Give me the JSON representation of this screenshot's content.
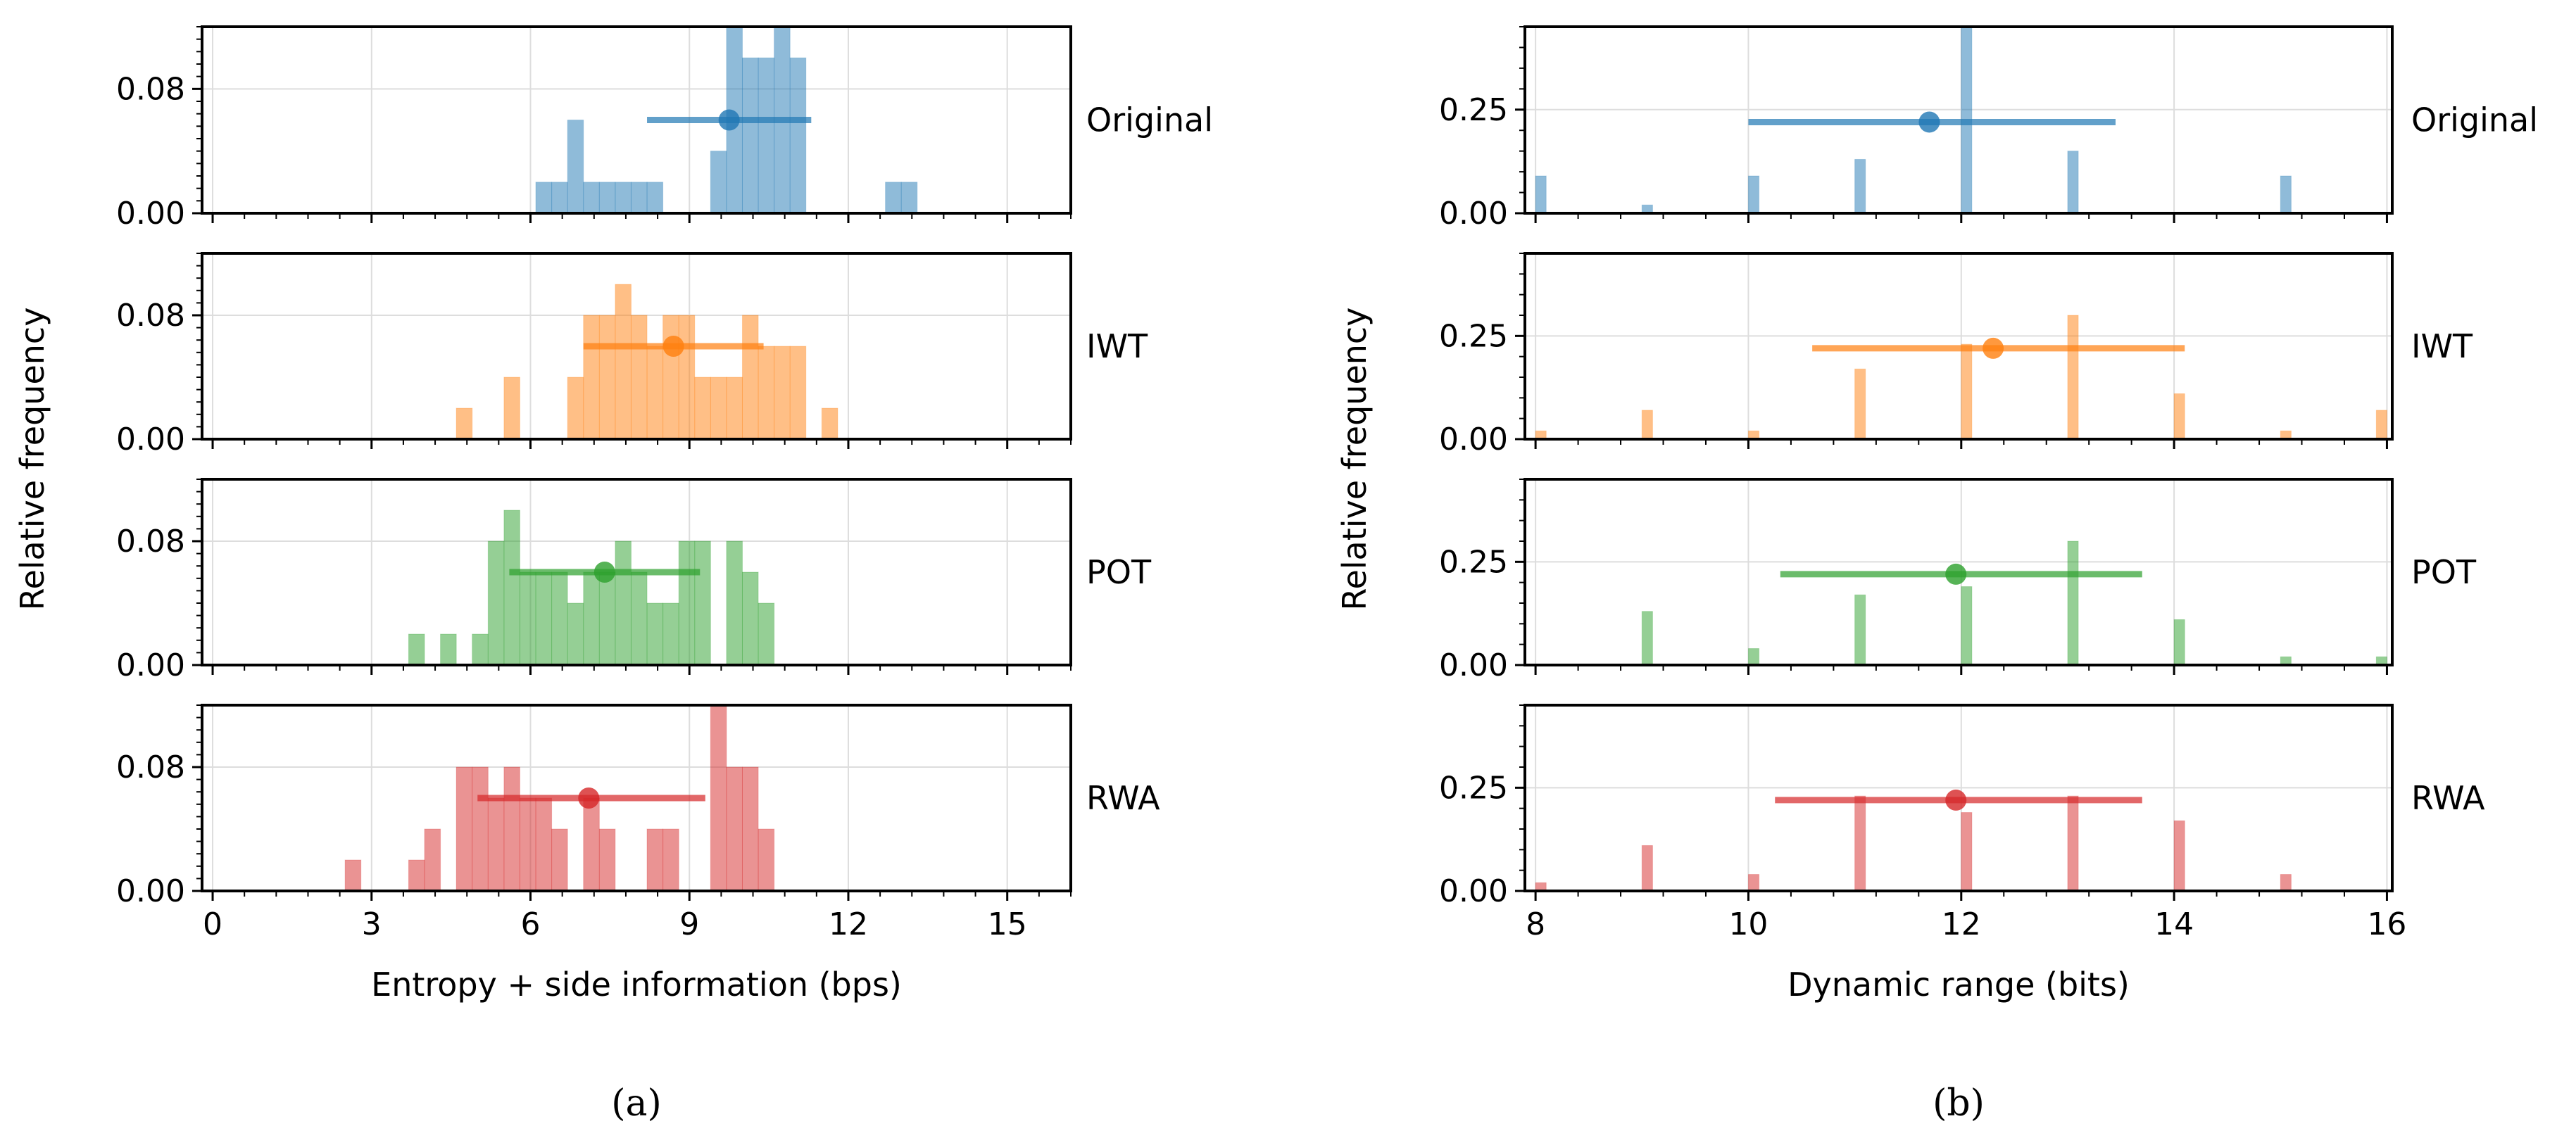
{
  "figure": {
    "ylabel": "Relative frequency",
    "subfigure_labels": [
      "(a)",
      "(b)"
    ]
  },
  "colors": {
    "Original": "#1f77b4",
    "IWT": "#ff7f0e",
    "POT": "#2ca02c",
    "RWA": "#d62728"
  },
  "chart_data": [
    {
      "id": "a",
      "type": "bar",
      "title": "",
      "xlabel": "Entropy + side information (bps)",
      "ylabel": "Relative frequency",
      "xlim": [
        -0.2,
        16.2
      ],
      "ylim": [
        0,
        0.12
      ],
      "xticks": [
        0,
        3,
        6,
        9,
        12,
        15
      ],
      "yticks": [
        0,
        0.08
      ],
      "ytick_labels": [
        "0.00",
        "0.08"
      ],
      "bin_width": 0.3,
      "grid": true,
      "series": [
        {
          "name": "Original",
          "mean": 9.75,
          "err_low": 8.2,
          "err_high": 11.3,
          "marker_y": 0.06,
          "bins": [
            [
              6.1,
              0.02
            ],
            [
              6.4,
              0.02
            ],
            [
              6.7,
              0.06
            ],
            [
              7.0,
              0.02
            ],
            [
              7.3,
              0.02
            ],
            [
              7.6,
              0.02
            ],
            [
              7.9,
              0.02
            ],
            [
              8.2,
              0.02
            ],
            [
              9.4,
              0.04
            ],
            [
              9.7,
              0.12
            ],
            [
              10.0,
              0.1
            ],
            [
              10.3,
              0.1
            ],
            [
              10.6,
              0.12
            ],
            [
              10.9,
              0.1
            ],
            [
              12.7,
              0.02
            ],
            [
              13.0,
              0.02
            ]
          ]
        },
        {
          "name": "IWT",
          "mean": 8.7,
          "err_low": 7.0,
          "err_high": 10.4,
          "marker_y": 0.06,
          "bins": [
            [
              4.6,
              0.02
            ],
            [
              5.5,
              0.04
            ],
            [
              6.7,
              0.04
            ],
            [
              7.0,
              0.08
            ],
            [
              7.3,
              0.08
            ],
            [
              7.6,
              0.1
            ],
            [
              7.9,
              0.08
            ],
            [
              8.2,
              0.06
            ],
            [
              8.5,
              0.08
            ],
            [
              8.8,
              0.08
            ],
            [
              9.1,
              0.04
            ],
            [
              9.4,
              0.04
            ],
            [
              9.7,
              0.04
            ],
            [
              10.0,
              0.08
            ],
            [
              10.3,
              0.06
            ],
            [
              10.6,
              0.06
            ],
            [
              10.9,
              0.06
            ],
            [
              11.5,
              0.02
            ]
          ]
        },
        {
          "name": "POT",
          "mean": 7.4,
          "err_low": 5.6,
          "err_high": 9.2,
          "marker_y": 0.06,
          "bins": [
            [
              3.7,
              0.02
            ],
            [
              4.3,
              0.02
            ],
            [
              4.9,
              0.02
            ],
            [
              5.2,
              0.08
            ],
            [
              5.5,
              0.1
            ],
            [
              5.8,
              0.06
            ],
            [
              6.1,
              0.06
            ],
            [
              6.4,
              0.06
            ],
            [
              6.7,
              0.04
            ],
            [
              7.0,
              0.06
            ],
            [
              7.3,
              0.06
            ],
            [
              7.6,
              0.08
            ],
            [
              7.9,
              0.06
            ],
            [
              8.2,
              0.04
            ],
            [
              8.5,
              0.04
            ],
            [
              8.8,
              0.08
            ],
            [
              9.1,
              0.08
            ],
            [
              9.7,
              0.08
            ],
            [
              10.0,
              0.06
            ],
            [
              10.3,
              0.04
            ]
          ]
        },
        {
          "name": "RWA",
          "mean": 7.1,
          "err_low": 5.0,
          "err_high": 9.3,
          "marker_y": 0.06,
          "bins": [
            [
              2.5,
              0.02
            ],
            [
              3.7,
              0.02
            ],
            [
              4.0,
              0.04
            ],
            [
              4.6,
              0.08
            ],
            [
              4.9,
              0.08
            ],
            [
              5.2,
              0.06
            ],
            [
              5.5,
              0.08
            ],
            [
              5.8,
              0.06
            ],
            [
              6.1,
              0.06
            ],
            [
              6.4,
              0.04
            ],
            [
              7.0,
              0.06
            ],
            [
              7.3,
              0.04
            ],
            [
              8.2,
              0.04
            ],
            [
              8.5,
              0.04
            ],
            [
              9.4,
              0.12
            ],
            [
              9.7,
              0.08
            ],
            [
              10.0,
              0.08
            ],
            [
              10.3,
              0.04
            ]
          ]
        }
      ]
    },
    {
      "id": "b",
      "type": "bar",
      "title": "",
      "xlabel": "Dynamic range (bits)",
      "ylabel": "Relative frequency",
      "xlim": [
        7.9,
        16.05
      ],
      "ylim": [
        0,
        0.45
      ],
      "xticks": [
        8,
        10,
        12,
        14,
        16
      ],
      "yticks": [
        0,
        0.25
      ],
      "ytick_labels": [
        "0.00",
        "0.25"
      ],
      "bin_width": 0.1,
      "grid": true,
      "series": [
        {
          "name": "Original",
          "mean": 11.7,
          "err_low": 10.0,
          "err_high": 13.45,
          "marker_y": 0.22,
          "bins": [
            [
              8.0,
              0.09
            ],
            [
              9.0,
              0.02
            ],
            [
              10.0,
              0.09
            ],
            [
              11.0,
              0.13
            ],
            [
              12.0,
              0.45
            ],
            [
              13.0,
              0.15
            ],
            [
              15.0,
              0.09
            ]
          ]
        },
        {
          "name": "IWT",
          "mean": 12.3,
          "err_low": 10.6,
          "err_high": 14.1,
          "marker_y": 0.22,
          "bins": [
            [
              8.0,
              0.02
            ],
            [
              9.0,
              0.07
            ],
            [
              10.0,
              0.02
            ],
            [
              11.0,
              0.17
            ],
            [
              12.0,
              0.23
            ],
            [
              13.0,
              0.3
            ],
            [
              14.0,
              0.11
            ],
            [
              15.0,
              0.02
            ],
            [
              15.9,
              0.07
            ]
          ]
        },
        {
          "name": "POT",
          "mean": 11.95,
          "err_low": 10.3,
          "err_high": 13.7,
          "marker_y": 0.22,
          "bins": [
            [
              9.0,
              0.13
            ],
            [
              10.0,
              0.04
            ],
            [
              11.0,
              0.17
            ],
            [
              12.0,
              0.19
            ],
            [
              13.0,
              0.3
            ],
            [
              14.0,
              0.11
            ],
            [
              15.0,
              0.02
            ],
            [
              15.9,
              0.02
            ]
          ]
        },
        {
          "name": "RWA",
          "mean": 11.95,
          "err_low": 10.25,
          "err_high": 13.7,
          "marker_y": 0.22,
          "bins": [
            [
              8.0,
              0.02
            ],
            [
              9.0,
              0.11
            ],
            [
              10.0,
              0.04
            ],
            [
              11.0,
              0.23
            ],
            [
              12.0,
              0.19
            ],
            [
              13.0,
              0.23
            ],
            [
              14.0,
              0.17
            ],
            [
              15.0,
              0.04
            ]
          ]
        }
      ]
    }
  ]
}
